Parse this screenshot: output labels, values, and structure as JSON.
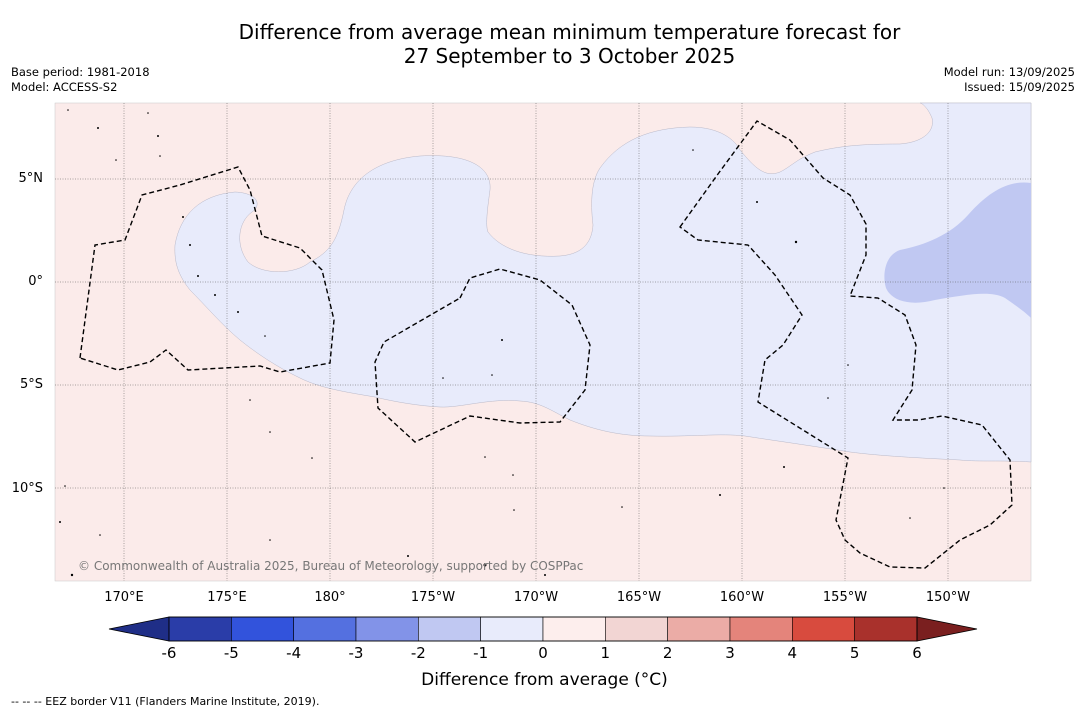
{
  "title": {
    "line1": "Difference from average mean minimum temperature forecast for",
    "line2": "27 September to 3 October 2025"
  },
  "meta_left": {
    "base_period": "Base period: 1981-2018",
    "model": "Model: ACCESS-S2"
  },
  "meta_right": {
    "model_run": "Model run: 13/09/2025",
    "issued": "Issued: 15/09/2025"
  },
  "map": {
    "latitude_labels": [
      "5°N",
      "0°",
      "5°S",
      "10°S"
    ],
    "longitude_labels": [
      "170°E",
      "175°E",
      "180°",
      "175°W",
      "170°W",
      "165°W",
      "160°W",
      "155°W",
      "150°W"
    ],
    "copyright": "© Commonwealth of Australia 2025, Bureau of Meteorology, supported by COSPPac",
    "colors": {
      "warm_0_1": "#fbebea",
      "cool_0_-1": "#e8ebfb",
      "cool_-1_-2": "#c0c8f2",
      "eez_border": "#000000"
    }
  },
  "colorbar": {
    "ticks": [
      "-6",
      "-5",
      "-4",
      "-3",
      "-2",
      "-1",
      "0",
      "1",
      "2",
      "3",
      "4",
      "5",
      "6"
    ],
    "colors": [
      "#2a3da8",
      "#3253dc",
      "#5470e0",
      "#8293e8",
      "#c0c8f2",
      "#e8ebfb",
      "#fdeeed",
      "#f2d5d3",
      "#ebaca6",
      "#e4847b",
      "#d84b3e",
      "#a9312c"
    ],
    "extend_low_color": "#1f2e87",
    "extend_high_color": "#7a1f1f",
    "label": "Difference from average (°C)"
  },
  "legend": "--  --  -- EEZ border V11 (Flanders Marine Institute, 2019)."
}
